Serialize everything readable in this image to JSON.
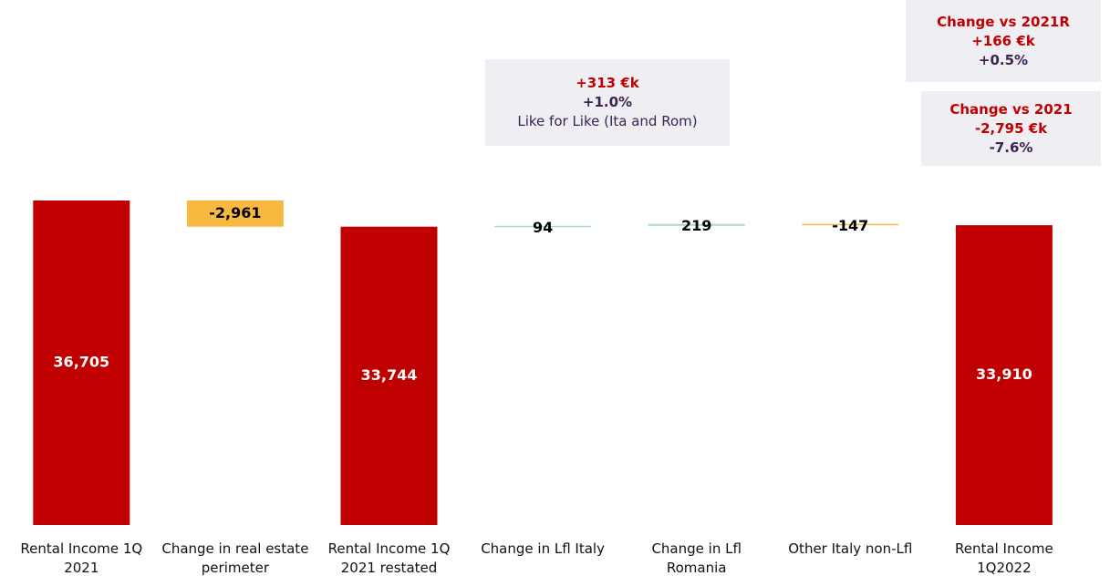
{
  "chart_data": {
    "type": "waterfall",
    "categories": [
      "Rental Income 1Q 2021",
      "Change in real estate perimeter",
      "Rental Income 1Q 2021 restated",
      "Change in Lfl Italy",
      "Change in Lfl Romania",
      "Other Italy non-Lfl",
      "Rental Income 1Q2022"
    ],
    "values": [
      36705,
      -2961,
      33744,
      94,
      219,
      -147,
      33910
    ],
    "value_labels": [
      "36,705",
      "-2,961",
      "33,744",
      "94",
      "219",
      "-147",
      "33,910"
    ],
    "total_color": "#c00000",
    "increase_color": "#a9dcc6",
    "decrease_color": "#f8b940",
    "annotations": [
      {
        "lines": [
          "+313 €k",
          "+1.0%",
          "Like for Like (Ita and Rom)"
        ]
      },
      {
        "lines": [
          "Change vs 2021R",
          "+166 €k",
          "+0.5%"
        ]
      },
      {
        "lines": [
          "Change vs 2021",
          "-2,795 €k",
          "-7.6%"
        ]
      }
    ]
  }
}
